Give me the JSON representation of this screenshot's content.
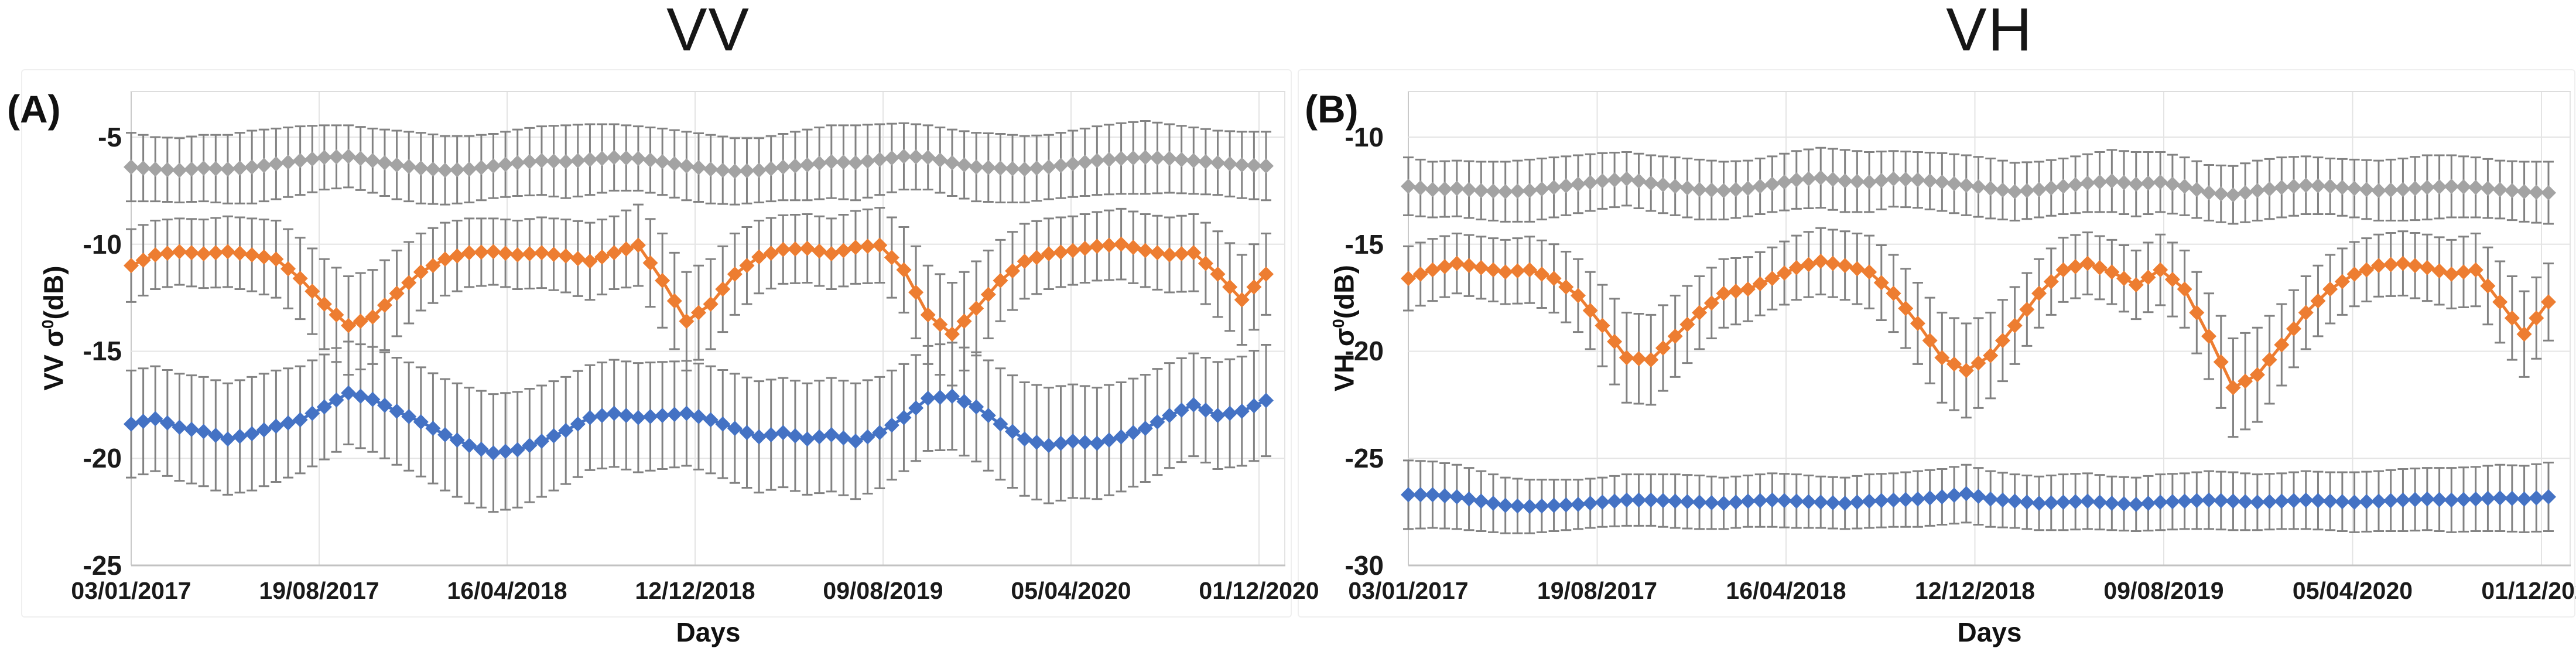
{
  "figure": {
    "background": "#ffffff",
    "panel_letters": [
      "(A)",
      "(B)"
    ],
    "marker_shape": "diamond",
    "errorbar_color": "#828282",
    "gridline_color": "#e4e4e4",
    "axis_line_color": "#c2c2c2"
  },
  "chart_data": [
    {
      "type": "line",
      "panel_label": "(A)",
      "title": "VV",
      "ylabel_prefix": "VV σ",
      "ylabel_sup": "0",
      "ylabel_suffix": "(dB)",
      "xlabel": "Days",
      "grid": true,
      "legend": false,
      "ylim": {
        "top": -2.84,
        "bottom": -25
      },
      "ytick_labels": [
        "-5",
        "-10",
        "-15",
        "-20",
        "-25"
      ],
      "ytick_values": [
        -5,
        -10,
        -15,
        -20,
        -25
      ],
      "xtick_labels": [
        "03/01/2017",
        "19/08/2017",
        "16/04/2018",
        "12/12/2018",
        "09/08/2019",
        "05/04/2020",
        "01/12/2020"
      ],
      "x_domain": {
        "start": "03/01/2017",
        "end": "01/12/2020",
        "sampling": "monthly mean values Jan 2017 - Dec 2020, 48 points per series"
      },
      "series": [
        {
          "name": "gray",
          "color": "#A3A3A3",
          "values": [
            -6.4,
            -6.5,
            -6.55,
            -6.45,
            -6.5,
            -6.4,
            -6.25,
            -6.1,
            -5.95,
            -5.9,
            -6.1,
            -6.3,
            -6.45,
            -6.55,
            -6.5,
            -6.35,
            -6.2,
            -6.1,
            -6.15,
            -6.05,
            -5.95,
            -6.0,
            -6.15,
            -6.35,
            -6.5,
            -6.6,
            -6.55,
            -6.4,
            -6.3,
            -6.15,
            -6.2,
            -6.05,
            -5.9,
            -5.95,
            -6.2,
            -6.4,
            -6.45,
            -6.5,
            -6.4,
            -6.25,
            -6.1,
            -6.0,
            -5.95,
            -6.0,
            -6.1,
            -6.2,
            -6.3,
            -6.35
          ],
          "err": [
            1.6,
            1.5,
            1.5,
            1.55,
            1.6,
            1.7,
            1.65,
            1.6,
            1.5,
            1.45,
            1.5,
            1.6,
            1.65,
            1.6,
            1.55,
            1.5,
            1.55,
            1.6,
            1.7,
            1.65,
            1.55,
            1.5,
            1.55,
            1.6,
            1.6,
            1.55,
            1.5,
            1.55,
            1.65,
            1.7,
            1.75,
            1.65,
            1.55,
            1.5,
            1.55,
            1.6,
            1.6,
            1.55,
            1.5,
            1.55,
            1.6,
            1.65,
            1.7,
            1.6,
            1.55,
            1.5,
            1.55,
            1.6
          ]
        },
        {
          "name": "orange",
          "color": "#ED7D31",
          "values": [
            -11.0,
            -10.5,
            -10.35,
            -10.45,
            -10.35,
            -10.5,
            -10.7,
            -11.6,
            -12.8,
            -13.8,
            -13.4,
            -12.3,
            -11.3,
            -10.7,
            -10.4,
            -10.35,
            -10.5,
            -10.4,
            -10.55,
            -10.8,
            -10.4,
            -10.05,
            -11.7,
            -13.6,
            -12.8,
            -11.4,
            -10.6,
            -10.25,
            -10.2,
            -10.45,
            -10.15,
            -10.05,
            -11.2,
            -13.3,
            -14.2,
            -13.0,
            -11.7,
            -10.8,
            -10.45,
            -10.3,
            -10.1,
            -10.0,
            -10.3,
            -10.5,
            -10.4,
            -11.4,
            -12.6,
            -11.4
          ],
          "err": [
            1.7,
            1.6,
            1.55,
            1.6,
            1.65,
            1.7,
            1.8,
            1.9,
            2.1,
            2.3,
            2.2,
            2.0,
            1.8,
            1.7,
            1.6,
            1.55,
            1.6,
            1.65,
            1.7,
            1.8,
            1.7,
            1.9,
            2.2,
            2.3,
            2.1,
            1.9,
            1.7,
            1.6,
            1.6,
            1.65,
            1.7,
            1.75,
            2.0,
            2.3,
            2.4,
            2.2,
            1.9,
            1.75,
            1.65,
            1.6,
            1.6,
            1.65,
            1.7,
            1.75,
            1.8,
            2.0,
            2.1,
            1.9
          ]
        },
        {
          "name": "blue",
          "color": "#4472C4",
          "values": [
            -18.4,
            -18.15,
            -18.55,
            -18.75,
            -19.1,
            -18.85,
            -18.5,
            -18.2,
            -17.6,
            -16.95,
            -17.25,
            -17.8,
            -18.3,
            -18.9,
            -19.4,
            -19.75,
            -19.6,
            -19.2,
            -18.7,
            -18.1,
            -17.9,
            -18.1,
            -18.0,
            -17.9,
            -18.2,
            -18.6,
            -19.0,
            -18.8,
            -19.1,
            -18.9,
            -19.2,
            -18.8,
            -18.1,
            -17.2,
            -17.1,
            -17.6,
            -18.4,
            -19.1,
            -19.4,
            -19.2,
            -19.3,
            -19.0,
            -18.6,
            -18.0,
            -17.5,
            -18.0,
            -17.8,
            -17.3
          ],
          "err": [
            2.5,
            2.45,
            2.5,
            2.55,
            2.6,
            2.65,
            2.6,
            2.5,
            2.45,
            2.4,
            2.45,
            2.5,
            2.55,
            2.6,
            2.7,
            2.75,
            2.7,
            2.6,
            2.5,
            2.45,
            2.5,
            2.55,
            2.5,
            2.45,
            2.5,
            2.55,
            2.6,
            2.55,
            2.6,
            2.65,
            2.7,
            2.6,
            2.5,
            2.45,
            2.5,
            2.55,
            2.6,
            2.65,
            2.7,
            2.65,
            2.6,
            2.55,
            2.5,
            2.45,
            2.4,
            2.5,
            2.55,
            2.6
          ]
        }
      ]
    },
    {
      "type": "line",
      "panel_label": "(B)",
      "title": "VH",
      "ylabel_prefix": "VH σ",
      "ylabel_sup": "0",
      "ylabel_suffix": "(dB)",
      "xlabel": "Days",
      "grid": true,
      "legend": false,
      "ylim": {
        "top": -7.84,
        "bottom": -30
      },
      "ytick_labels": [
        "-10",
        "-15",
        "-20",
        "-25",
        "-30"
      ],
      "ytick_values": [
        -10,
        -15,
        -20,
        -25,
        -30
      ],
      "xtick_labels": [
        "03/01/2017",
        "19/08/2017",
        "16/04/2018",
        "12/12/2018",
        "09/08/2019",
        "05/04/2020",
        "01/12/2020"
      ],
      "x_domain": {
        "start": "03/01/2017",
        "end": "01/12/2020",
        "sampling": "monthly mean values Jan 2017 - Dec 2020, 48 points per series"
      },
      "series": [
        {
          "name": "gray",
          "color": "#A3A3A3",
          "values": [
            -12.3,
            -12.45,
            -12.4,
            -12.5,
            -12.55,
            -12.5,
            -12.35,
            -12.2,
            -12.05,
            -11.95,
            -12.15,
            -12.3,
            -12.45,
            -12.5,
            -12.4,
            -12.2,
            -12.0,
            -11.9,
            -12.05,
            -12.1,
            -11.95,
            -12.0,
            -12.1,
            -12.25,
            -12.4,
            -12.55,
            -12.45,
            -12.3,
            -12.15,
            -12.05,
            -12.2,
            -12.1,
            -12.3,
            -12.6,
            -12.7,
            -12.5,
            -12.35,
            -12.25,
            -12.3,
            -12.4,
            -12.5,
            -12.45,
            -12.35,
            -12.3,
            -12.35,
            -12.45,
            -12.55,
            -12.6
          ],
          "err": [
            1.35,
            1.3,
            1.3,
            1.35,
            1.4,
            1.45,
            1.4,
            1.35,
            1.3,
            1.25,
            1.3,
            1.35,
            1.4,
            1.35,
            1.3,
            1.3,
            1.35,
            1.4,
            1.45,
            1.4,
            1.3,
            1.3,
            1.35,
            1.4,
            1.4,
            1.35,
            1.3,
            1.3,
            1.35,
            1.45,
            1.5,
            1.4,
            1.35,
            1.3,
            1.35,
            1.4,
            1.4,
            1.35,
            1.3,
            1.35,
            1.4,
            1.45,
            1.5,
            1.45,
            1.4,
            1.35,
            1.4,
            1.45
          ]
        },
        {
          "name": "orange",
          "color": "#ED7D31",
          "values": [
            -16.6,
            -16.2,
            -15.9,
            -16.1,
            -16.3,
            -16.2,
            -16.6,
            -17.4,
            -18.8,
            -20.3,
            -20.4,
            -19.3,
            -18.2,
            -17.3,
            -17.1,
            -16.6,
            -16.1,
            -15.8,
            -16.0,
            -16.3,
            -17.3,
            -18.7,
            -20.3,
            -20.9,
            -20.2,
            -18.8,
            -17.3,
            -16.2,
            -15.9,
            -16.3,
            -16.9,
            -16.2,
            -17.1,
            -19.3,
            -21.7,
            -21.1,
            -19.7,
            -18.2,
            -17.1,
            -16.4,
            -16.0,
            -15.9,
            -16.1,
            -16.4,
            -16.2,
            -17.7,
            -19.2,
            -17.7
          ],
          "err": [
            1.5,
            1.45,
            1.4,
            1.45,
            1.5,
            1.55,
            1.6,
            1.7,
            1.9,
            2.1,
            2.1,
            1.9,
            1.7,
            1.6,
            1.5,
            1.45,
            1.5,
            1.55,
            1.6,
            1.7,
            1.8,
            1.9,
            2.1,
            2.2,
            2.0,
            1.8,
            1.6,
            1.5,
            1.45,
            1.5,
            1.6,
            1.65,
            1.8,
            2.0,
            2.3,
            2.2,
            1.9,
            1.7,
            1.6,
            1.5,
            1.45,
            1.5,
            1.55,
            1.6,
            1.7,
            1.9,
            2.0,
            1.8
          ]
        },
        {
          "name": "blue",
          "color": "#4472C4",
          "values": [
            -26.7,
            -26.7,
            -26.8,
            -27.0,
            -27.2,
            -27.25,
            -27.2,
            -27.15,
            -27.05,
            -26.95,
            -26.95,
            -27.0,
            -27.05,
            -27.1,
            -27.0,
            -26.95,
            -27.0,
            -27.05,
            -27.1,
            -27.0,
            -26.95,
            -26.9,
            -26.8,
            -26.65,
            -26.9,
            -27.0,
            -27.1,
            -27.05,
            -27.0,
            -27.1,
            -27.15,
            -27.05,
            -27.0,
            -26.95,
            -27.0,
            -27.05,
            -27.0,
            -26.95,
            -27.0,
            -27.05,
            -27.0,
            -26.95,
            -26.9,
            -26.95,
            -26.9,
            -26.85,
            -26.9,
            -26.8
          ],
          "err": [
            1.6,
            1.55,
            1.5,
            1.4,
            1.3,
            1.25,
            1.2,
            1.15,
            1.15,
            1.2,
            1.2,
            1.25,
            1.25,
            1.2,
            1.2,
            1.25,
            1.25,
            1.2,
            1.2,
            1.25,
            1.25,
            1.3,
            1.3,
            1.35,
            1.3,
            1.25,
            1.25,
            1.3,
            1.3,
            1.25,
            1.25,
            1.3,
            1.3,
            1.35,
            1.35,
            1.3,
            1.3,
            1.35,
            1.35,
            1.4,
            1.4,
            1.45,
            1.45,
            1.5,
            1.5,
            1.55,
            1.55,
            1.6
          ]
        }
      ]
    }
  ]
}
